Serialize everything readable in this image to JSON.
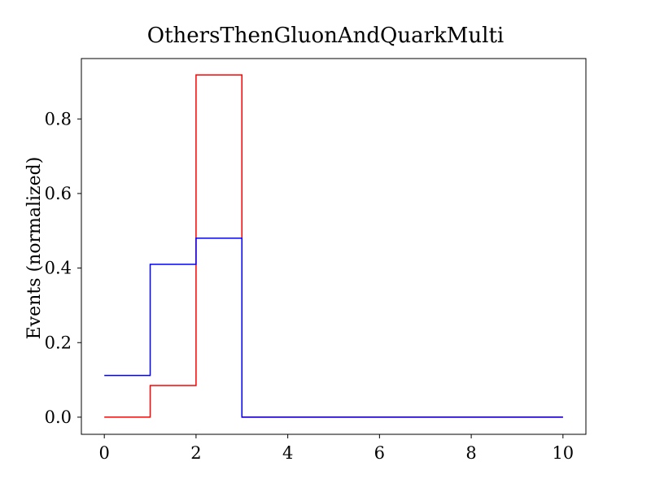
{
  "chart_data": {
    "type": "line",
    "step": "post",
    "title": "OthersThenGluonAndQuarkMulti",
    "xlabel": "",
    "ylabel": "Events (normalized)",
    "xlim": [
      -0.5,
      10.5
    ],
    "ylim": [
      -0.046,
      0.962
    ],
    "xticks": [
      0,
      2,
      4,
      6,
      8,
      10
    ],
    "xtick_labels": [
      "0",
      "2",
      "4",
      "6",
      "8",
      "10"
    ],
    "yticks": [
      0.0,
      0.2,
      0.4,
      0.6,
      0.8
    ],
    "ytick_labels": [
      "0.0",
      "0.2",
      "0.4",
      "0.6",
      "0.8"
    ],
    "grid": false,
    "legend": "none",
    "bin_edges": [
      0,
      1,
      2,
      3,
      4,
      5,
      6,
      7,
      8,
      9,
      10
    ],
    "series": [
      {
        "color": "#ff0000",
        "values": [
          0.0,
          0.085,
          0.918,
          0.0,
          0.0,
          0.0,
          0.0,
          0.0,
          0.0,
          0.0
        ]
      },
      {
        "color": "#0000ff",
        "values": [
          0.112,
          0.41,
          0.48,
          0.0,
          0.0,
          0.0,
          0.0,
          0.0,
          0.0,
          0.0
        ]
      }
    ]
  }
}
